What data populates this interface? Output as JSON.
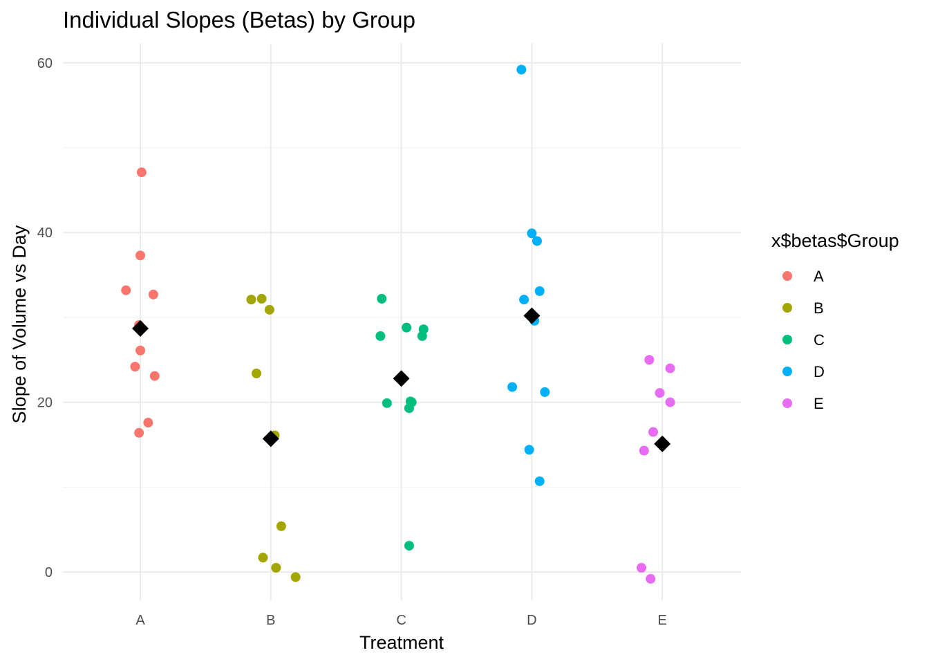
{
  "chart_data": {
    "type": "scatter",
    "title": "Individual Slopes (Betas) by Group",
    "xlabel": "Treatment",
    "ylabel": "Slope of Volume vs Day",
    "categories": [
      "A",
      "B",
      "C",
      "D",
      "E"
    ],
    "ylim": [
      -3.5,
      62.5
    ],
    "yticks": [
      0,
      20,
      40,
      60
    ],
    "grid": true,
    "legend": {
      "title": "x$betas$Group",
      "position": "right",
      "entries": [
        "A",
        "B",
        "C",
        "D",
        "E"
      ]
    },
    "colors": {
      "A": "#F8766D",
      "B": "#A3A500",
      "C": "#00BF7D",
      "D": "#00B0F6",
      "E": "#E76BF3",
      "mean": "#000000"
    },
    "series": [
      {
        "name": "A",
        "points": [
          {
            "x": 1.01,
            "y": 47.1
          },
          {
            "x": 1.0,
            "y": 37.3
          },
          {
            "x": 0.89,
            "y": 33.2
          },
          {
            "x": 1.1,
            "y": 32.7
          },
          {
            "x": 0.99,
            "y": 29.1
          },
          {
            "x": 1.0,
            "y": 26.1
          },
          {
            "x": 0.96,
            "y": 24.2
          },
          {
            "x": 1.11,
            "y": 23.1
          },
          {
            "x": 1.06,
            "y": 17.6
          },
          {
            "x": 0.99,
            "y": 16.4
          }
        ]
      },
      {
        "name": "B",
        "points": [
          {
            "x": 1.85,
            "y": 32.1
          },
          {
            "x": 1.93,
            "y": 32.2
          },
          {
            "x": 1.99,
            "y": 30.9
          },
          {
            "x": 1.89,
            "y": 23.4
          },
          {
            "x": 2.03,
            "y": 16.1
          },
          {
            "x": 2.08,
            "y": 5.4
          },
          {
            "x": 1.94,
            "y": 1.7
          },
          {
            "x": 2.04,
            "y": 0.5
          },
          {
            "x": 2.19,
            "y": -0.6
          }
        ]
      },
      {
        "name": "C",
        "points": [
          {
            "x": 2.85,
            "y": 32.2
          },
          {
            "x": 3.04,
            "y": 28.8
          },
          {
            "x": 3.17,
            "y": 28.6
          },
          {
            "x": 2.84,
            "y": 27.8
          },
          {
            "x": 3.16,
            "y": 27.8
          },
          {
            "x": 3.07,
            "y": 20.1
          },
          {
            "x": 3.08,
            "y": 20.0
          },
          {
            "x": 2.89,
            "y": 19.9
          },
          {
            "x": 3.06,
            "y": 19.3
          },
          {
            "x": 3.06,
            "y": 3.1
          }
        ]
      },
      {
        "name": "D",
        "points": [
          {
            "x": 3.92,
            "y": 59.2
          },
          {
            "x": 4.0,
            "y": 39.9
          },
          {
            "x": 4.04,
            "y": 39.0
          },
          {
            "x": 4.06,
            "y": 33.1
          },
          {
            "x": 3.94,
            "y": 32.1
          },
          {
            "x": 4.02,
            "y": 29.6
          },
          {
            "x": 3.85,
            "y": 21.8
          },
          {
            "x": 4.1,
            "y": 21.2
          },
          {
            "x": 3.98,
            "y": 14.4
          },
          {
            "x": 4.06,
            "y": 10.7
          }
        ]
      },
      {
        "name": "E",
        "points": [
          {
            "x": 4.9,
            "y": 25.0
          },
          {
            "x": 5.06,
            "y": 24.0
          },
          {
            "x": 4.98,
            "y": 21.1
          },
          {
            "x": 5.06,
            "y": 20.0
          },
          {
            "x": 4.93,
            "y": 16.5
          },
          {
            "x": 4.86,
            "y": 14.3
          },
          {
            "x": 4.84,
            "y": 0.5
          },
          {
            "x": 4.91,
            "y": -0.8
          }
        ]
      }
    ],
    "means": [
      {
        "category": "A",
        "x": 1,
        "y": 28.7
      },
      {
        "category": "B",
        "x": 2,
        "y": 15.7
      },
      {
        "category": "C",
        "x": 3,
        "y": 22.8
      },
      {
        "category": "D",
        "x": 4,
        "y": 30.2
      },
      {
        "category": "E",
        "x": 5,
        "y": 15.1
      }
    ]
  }
}
